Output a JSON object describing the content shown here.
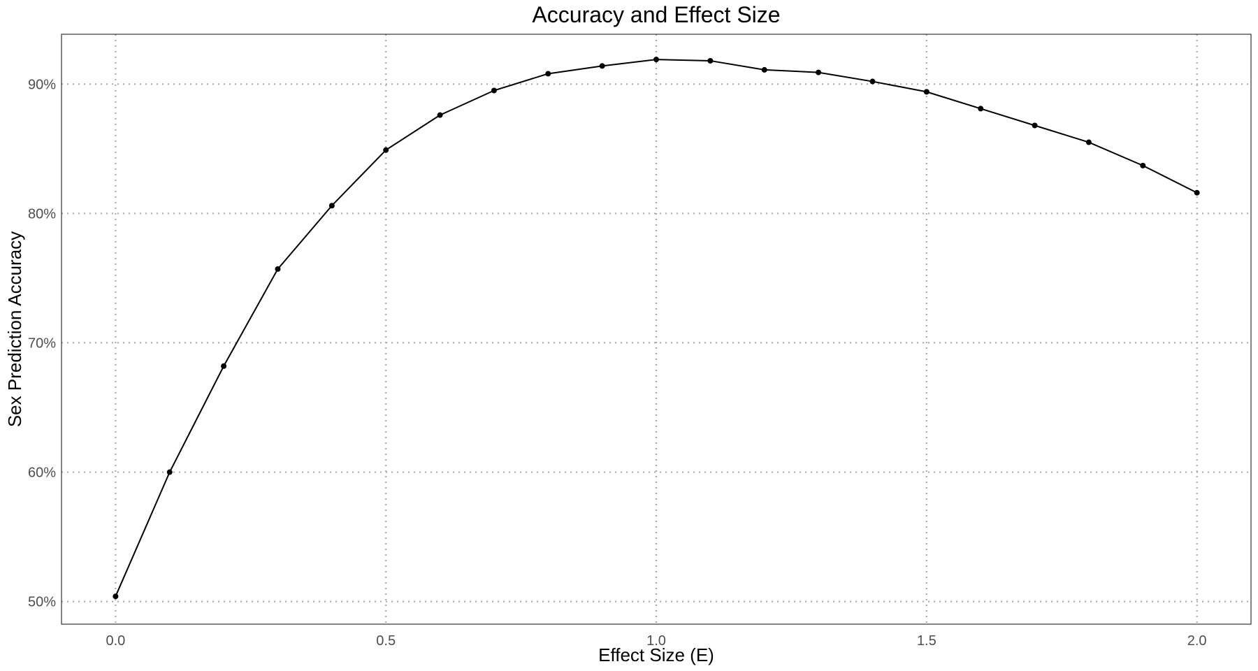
{
  "chart_data": {
    "type": "line",
    "title": "Accuracy and Effect Size",
    "xlabel": "Effect Size (E)",
    "ylabel": "Sex Prediction Accuracy",
    "xlim": [
      -0.1,
      2.1
    ],
    "ylim": [
      0.4825,
      0.9385
    ],
    "x_ticks": [
      0.0,
      0.5,
      1.0,
      1.5,
      2.0
    ],
    "x_tick_labels": [
      "0.0",
      "0.5",
      "1.0",
      "1.5",
      "2.0"
    ],
    "y_ticks": [
      0.5,
      0.6,
      0.7,
      0.8,
      0.9
    ],
    "y_tick_labels": [
      "50%",
      "60%",
      "70%",
      "80%",
      "90%"
    ],
    "grid": true,
    "legend": "none",
    "line_color": "#000000",
    "series": [
      {
        "x": [
          0.0,
          0.1,
          0.2,
          0.3,
          0.4,
          0.5,
          0.6,
          0.7,
          0.8,
          0.9,
          1.0,
          1.1,
          1.2,
          1.3,
          1.4,
          1.5,
          1.6,
          1.7,
          1.8,
          1.9,
          2.0
        ],
        "y": [
          0.504,
          0.6,
          0.682,
          0.757,
          0.806,
          0.849,
          0.876,
          0.895,
          0.908,
          0.914,
          0.919,
          0.918,
          0.911,
          0.909,
          0.902,
          0.894,
          0.881,
          0.868,
          0.855,
          0.837,
          0.816
        ]
      }
    ]
  }
}
